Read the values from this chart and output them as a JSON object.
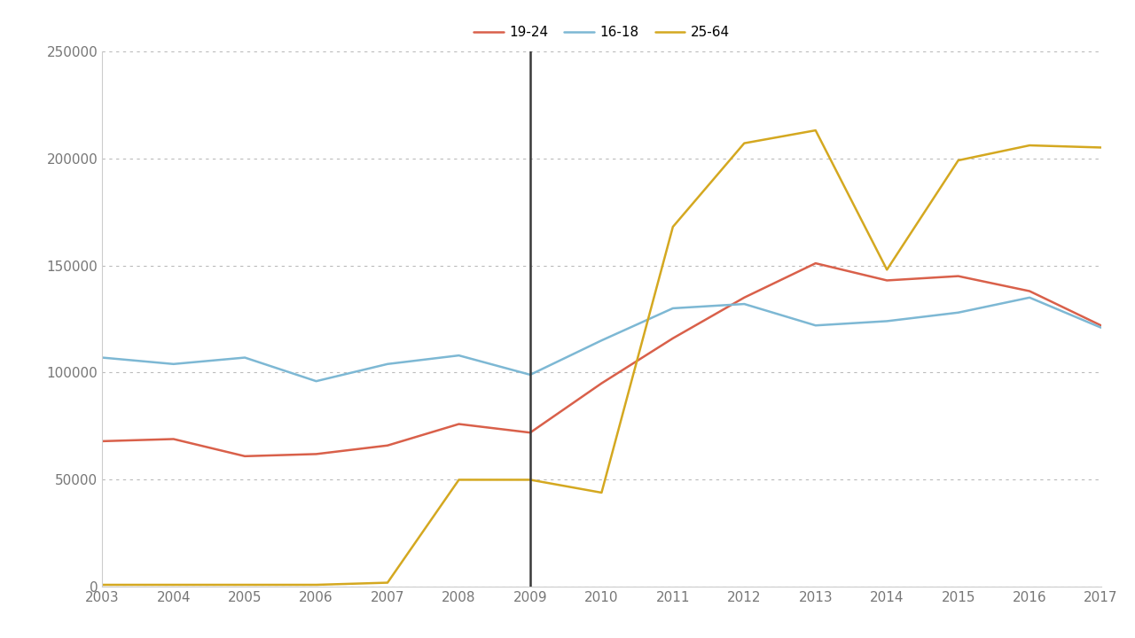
{
  "years": [
    2003,
    2004,
    2005,
    2006,
    2007,
    2008,
    2009,
    2010,
    2011,
    2012,
    2013,
    2014,
    2015,
    2016,
    2017
  ],
  "age_19_24": [
    68000,
    69000,
    61000,
    62000,
    66000,
    76000,
    72000,
    95000,
    116000,
    135000,
    151000,
    143000,
    145000,
    138000,
    122000
  ],
  "age_16_18": [
    107000,
    104000,
    107000,
    96000,
    104000,
    108000,
    99000,
    115000,
    130000,
    132000,
    122000,
    124000,
    128000,
    135000,
    121000
  ],
  "age_25_64": [
    1000,
    1000,
    1000,
    1000,
    2000,
    50000,
    50000,
    44000,
    168000,
    207000,
    213000,
    148000,
    199000,
    206000,
    205000
  ],
  "line_colors": {
    "19-24": "#d9604a",
    "16-18": "#7db8d4",
    "25-64": "#d4a820"
  },
  "vline_x": 2009,
  "vline_color": "#3a3a3a",
  "ylim": [
    0,
    250000
  ],
  "yticks": [
    0,
    50000,
    100000,
    150000,
    200000,
    250000
  ],
  "grid_color": "#bbbbbb",
  "background_color": "#ffffff",
  "legend_labels": [
    "19-24",
    "16-18",
    "25-64"
  ],
  "linewidth": 1.8,
  "tick_fontsize": 11,
  "tick_color": "#777777",
  "legend_fontsize": 11
}
